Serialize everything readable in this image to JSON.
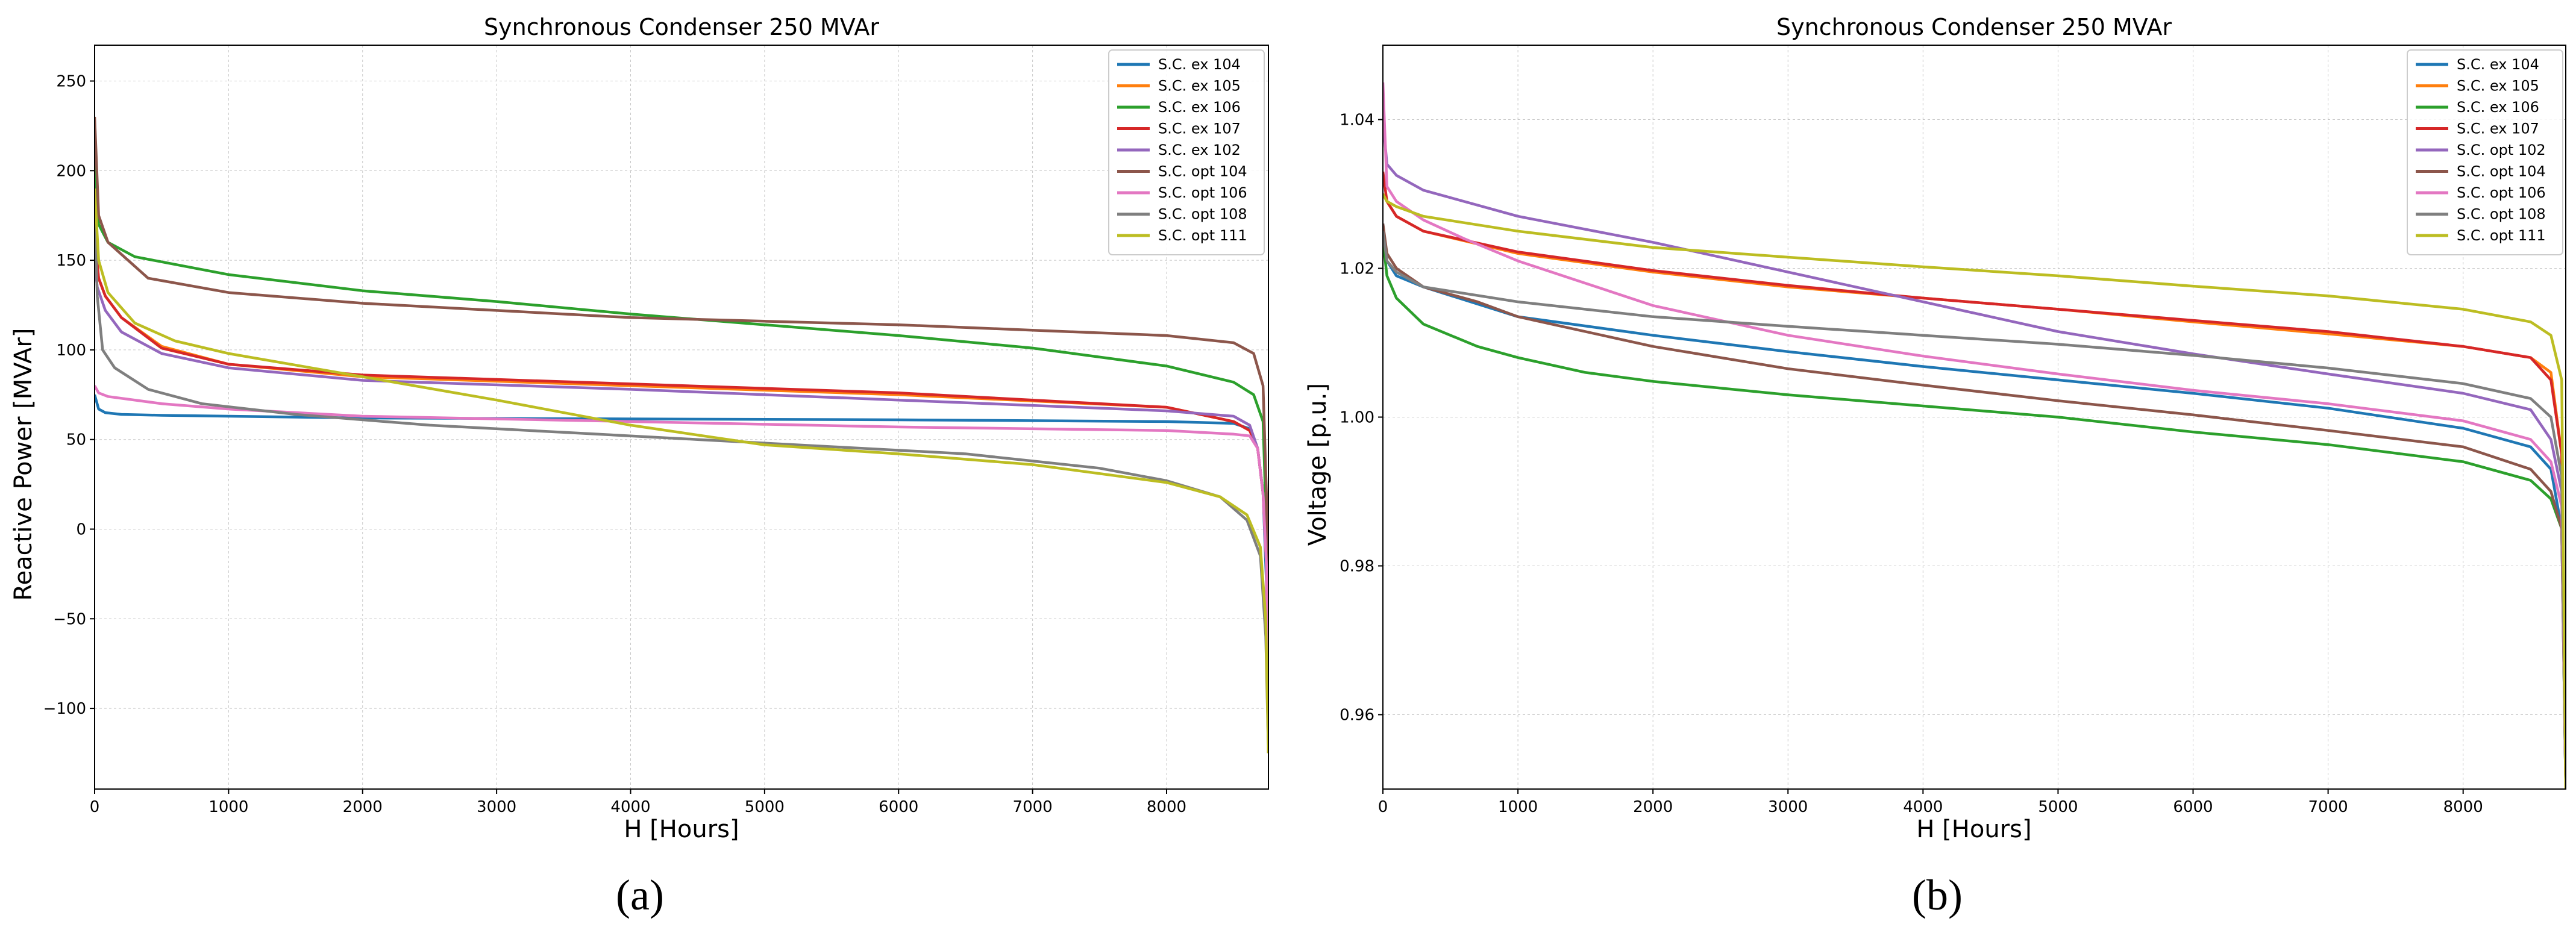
{
  "panel_labels": [
    "(a)",
    "(b)"
  ],
  "chart_data": [
    {
      "type": "line",
      "title": "Synchronous Condenser 250 MVAr",
      "xlabel": "H [Hours]",
      "ylabel": "Reactive Power [MVAr]",
      "xlim": [
        0,
        8760
      ],
      "ylim": [
        -145,
        270
      ],
      "xticks": [
        0,
        1000,
        2000,
        3000,
        4000,
        5000,
        6000,
        7000,
        8000
      ],
      "yticks": [
        -100,
        -50,
        0,
        50,
        100,
        150,
        200,
        250
      ],
      "ytick_labels": [
        "−100",
        "−50",
        "0",
        "50",
        "100",
        "150",
        "200",
        "250"
      ],
      "grid": true,
      "legend": "top-right",
      "series": [
        {
          "name": "S.C. ex 104",
          "color": "#1f77b4",
          "x": [
            0,
            30,
            80,
            200,
            500,
            1000,
            2000,
            4000,
            6000,
            8000,
            8500,
            8620,
            8680,
            8720,
            8745,
            8760
          ],
          "y": [
            75,
            67,
            65,
            64,
            63.5,
            63,
            62,
            61.5,
            61,
            60,
            59,
            56,
            45,
            20,
            -30,
            -125
          ]
        },
        {
          "name": "S.C. ex 105",
          "color": "#ff7f0e",
          "x": [
            0,
            30,
            80,
            200,
            500,
            1000,
            2000,
            4000,
            6000,
            8000,
            8500,
            8620,
            8680,
            8720,
            8745,
            8760
          ],
          "y": [
            160,
            140,
            130,
            118,
            102,
            92,
            85,
            80,
            75,
            68,
            60,
            55,
            45,
            20,
            -20,
            -125
          ]
        },
        {
          "name": "S.C. ex 106",
          "color": "#2ca02c",
          "x": [
            0,
            30,
            100,
            300,
            1000,
            2000,
            3000,
            4000,
            5000,
            6000,
            7000,
            8000,
            8500,
            8650,
            8720,
            8745,
            8760
          ],
          "y": [
            210,
            170,
            160,
            152,
            142,
            133,
            127,
            120,
            114,
            108,
            101,
            91,
            82,
            75,
            60,
            0,
            -125
          ]
        },
        {
          "name": "S.C. ex 107",
          "color": "#d62728",
          "x": [
            0,
            30,
            80,
            200,
            500,
            1000,
            2000,
            4000,
            6000,
            8000,
            8500,
            8620,
            8680,
            8720,
            8745,
            8760
          ],
          "y": [
            165,
            140,
            130,
            118,
            101,
            92,
            86,
            81,
            76,
            68,
            60,
            55,
            45,
            20,
            -20,
            -125
          ]
        },
        {
          "name": "S.C. ex 102",
          "color": "#9467bd",
          "x": [
            0,
            20,
            80,
            200,
            500,
            1000,
            2000,
            4000,
            6000,
            8000,
            8500,
            8620,
            8680,
            8720,
            8745,
            8760
          ],
          "y": [
            150,
            135,
            122,
            110,
            98,
            90,
            83,
            78,
            72,
            66,
            63,
            58,
            45,
            20,
            -20,
            -125
          ]
        },
        {
          "name": "S.C. opt 104",
          "color": "#8c564b",
          "x": [
            0,
            30,
            100,
            400,
            1000,
            2000,
            3000,
            4000,
            5000,
            6000,
            7000,
            8000,
            8500,
            8650,
            8720,
            8745,
            8760
          ],
          "y": [
            230,
            175,
            160,
            140,
            132,
            126,
            122,
            118,
            116,
            114,
            111,
            108,
            104,
            98,
            80,
            20,
            -125
          ]
        },
        {
          "name": "S.C. opt 106",
          "color": "#e377c2",
          "x": [
            0,
            30,
            100,
            500,
            1000,
            2000,
            4000,
            6000,
            8000,
            8500,
            8620,
            8680,
            8720,
            8745,
            8760
          ],
          "y": [
            80,
            76,
            74,
            70,
            67,
            63,
            60,
            57,
            55,
            53,
            52,
            45,
            20,
            -20,
            -125
          ]
        },
        {
          "name": "S.C. opt 108",
          "color": "#7f7f7f",
          "x": [
            0,
            20,
            60,
            150,
            400,
            800,
            1500,
            2500,
            3500,
            4500,
            5500,
            6500,
            7500,
            8000,
            8400,
            8600,
            8700,
            8740,
            8760
          ],
          "y": [
            180,
            130,
            100,
            90,
            78,
            70,
            64,
            58,
            54,
            50,
            46,
            42,
            34,
            27,
            18,
            5,
            -15,
            -60,
            -125
          ]
        },
        {
          "name": "S.C. opt 111",
          "color": "#bcbd22",
          "x": [
            0,
            30,
            100,
            300,
            600,
            1000,
            2000,
            3000,
            4000,
            5000,
            6000,
            7000,
            8000,
            8400,
            8600,
            8700,
            8740,
            8760
          ],
          "y": [
            190,
            150,
            132,
            115,
            105,
            98,
            85,
            72,
            58,
            47,
            42,
            36,
            26,
            18,
            8,
            -10,
            -50,
            -125
          ]
        }
      ]
    },
    {
      "type": "line",
      "title": "Synchronous Condenser 250 MVAr",
      "xlabel": "H [Hours]",
      "ylabel": "Voltage [p.u.]",
      "xlim": [
        0,
        8760
      ],
      "ylim": [
        0.95,
        1.05
      ],
      "xticks": [
        0,
        1000,
        2000,
        3000,
        4000,
        5000,
        6000,
        7000,
        8000
      ],
      "yticks": [
        0.96,
        0.98,
        1.0,
        1.02,
        1.04
      ],
      "ytick_labels": [
        "0.96",
        "0.98",
        "1.00",
        "1.02",
        "1.04"
      ],
      "grid": true,
      "legend": "top-right",
      "series": [
        {
          "name": "S.C. ex 104",
          "color": "#1f77b4",
          "x": [
            0,
            30,
            100,
            300,
            1000,
            2000,
            3000,
            4000,
            5000,
            6000,
            7000,
            8000,
            8500,
            8650,
            8730,
            8760
          ],
          "y": [
            1.026,
            1.021,
            1.019,
            1.0175,
            1.0135,
            1.011,
            1.0088,
            1.0068,
            1.005,
            1.0032,
            1.0012,
            0.9985,
            0.996,
            0.993,
            0.985,
            0.95
          ]
        },
        {
          "name": "S.C. ex 105",
          "color": "#ff7f0e",
          "x": [
            0,
            30,
            100,
            300,
            1000,
            2000,
            3000,
            4000,
            5000,
            6000,
            7000,
            8000,
            8500,
            8650,
            8730,
            8760
          ],
          "y": [
            1.03,
            1.029,
            1.027,
            1.025,
            1.022,
            1.0195,
            1.0175,
            1.016,
            1.0145,
            1.0128,
            1.0112,
            1.0095,
            1.008,
            1.006,
            0.995,
            0.95
          ]
        },
        {
          "name": "S.C. ex 106",
          "color": "#2ca02c",
          "x": [
            0,
            30,
            100,
            300,
            700,
            1000,
            1500,
            2000,
            3000,
            4000,
            5000,
            6000,
            7000,
            8000,
            8500,
            8650,
            8730,
            8760
          ],
          "y": [
            1.024,
            1.019,
            1.016,
            1.0125,
            1.0095,
            1.008,
            1.006,
            1.0048,
            1.003,
            1.0015,
            1.0,
            0.998,
            0.9963,
            0.994,
            0.9915,
            0.989,
            0.985,
            0.95
          ]
        },
        {
          "name": "S.C. ex 107",
          "color": "#d62728",
          "x": [
            0,
            30,
            100,
            300,
            1000,
            2000,
            3000,
            4000,
            5000,
            6000,
            7000,
            8000,
            8500,
            8650,
            8730,
            8760
          ],
          "y": [
            1.033,
            1.029,
            1.027,
            1.025,
            1.0222,
            1.0197,
            1.0177,
            1.016,
            1.0145,
            1.013,
            1.0115,
            1.0095,
            1.008,
            1.005,
            0.995,
            0.95
          ]
        },
        {
          "name": "S.C. opt 102",
          "color": "#9467bd",
          "x": [
            0,
            30,
            100,
            300,
            1000,
            2000,
            3000,
            4000,
            5000,
            6000,
            7000,
            8000,
            8500,
            8650,
            8730,
            8760
          ],
          "y": [
            1.04,
            1.034,
            1.0325,
            1.0305,
            1.027,
            1.0235,
            1.0195,
            1.0155,
            1.0115,
            1.0085,
            1.0058,
            1.0032,
            1.001,
            0.997,
            0.99,
            0.95
          ]
        },
        {
          "name": "S.C. opt 104",
          "color": "#8c564b",
          "x": [
            0,
            30,
            100,
            300,
            700,
            1000,
            2000,
            3000,
            4000,
            5000,
            6000,
            7000,
            8000,
            8500,
            8650,
            8730,
            8760
          ],
          "y": [
            1.026,
            1.022,
            1.02,
            1.0175,
            1.0155,
            1.0135,
            1.0095,
            1.0065,
            1.0043,
            1.0022,
            1.0003,
            0.9982,
            0.996,
            0.993,
            0.99,
            0.985,
            0.95
          ]
        },
        {
          "name": "S.C. opt 106",
          "color": "#e377c2",
          "x": [
            0,
            30,
            100,
            300,
            600,
            1000,
            1500,
            2000,
            3000,
            4000,
            5000,
            6000,
            7000,
            8000,
            8500,
            8650,
            8730,
            8760
          ],
          "y": [
            1.045,
            1.031,
            1.029,
            1.0265,
            1.024,
            1.021,
            1.018,
            1.015,
            1.011,
            1.0082,
            1.0058,
            1.0036,
            1.0018,
            0.9995,
            0.997,
            0.994,
            0.988,
            0.95
          ]
        },
        {
          "name": "S.C. opt 108",
          "color": "#7f7f7f",
          "x": [
            0,
            30,
            100,
            300,
            1000,
            2000,
            3000,
            4000,
            5000,
            6000,
            7000,
            8000,
            8500,
            8650,
            8730,
            8760
          ],
          "y": [
            1.025,
            1.021,
            1.0195,
            1.0175,
            1.0155,
            1.0135,
            1.0122,
            1.011,
            1.0098,
            1.0083,
            1.0066,
            1.0045,
            1.0025,
            1.0,
            0.992,
            0.95
          ]
        },
        {
          "name": "S.C. opt 111",
          "color": "#bcbd22",
          "x": [
            0,
            30,
            100,
            300,
            1000,
            2000,
            3000,
            4000,
            5000,
            6000,
            7000,
            8000,
            8500,
            8650,
            8730,
            8760
          ],
          "y": [
            1.03,
            1.029,
            1.0283,
            1.027,
            1.025,
            1.0228,
            1.0215,
            1.0202,
            1.019,
            1.0176,
            1.0163,
            1.0145,
            1.0128,
            1.011,
            1.005,
            0.95
          ]
        }
      ]
    }
  ]
}
